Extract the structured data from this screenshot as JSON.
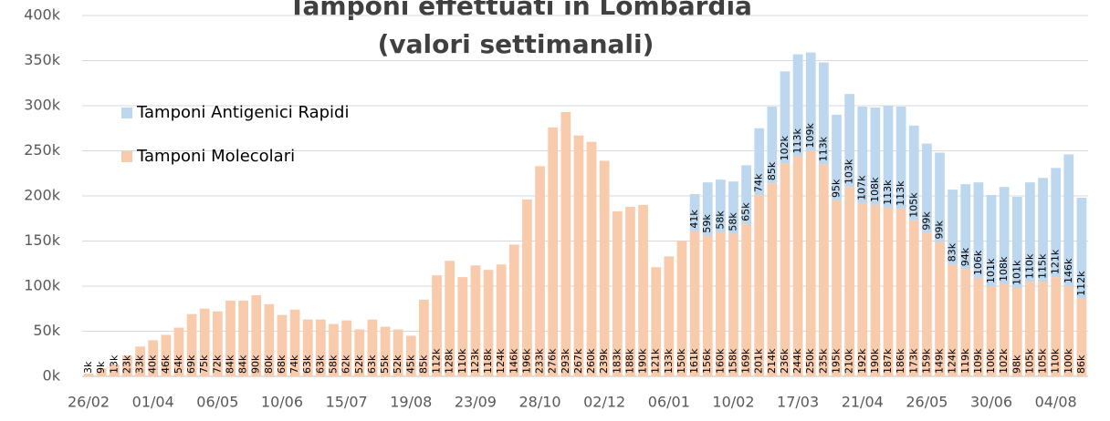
{
  "chart_data": {
    "type": "stacked_bar",
    "title": "Tamponi effettuati in Lombardia",
    "subtitle": "(valori settimanali)",
    "categories": [
      "26/02",
      null,
      null,
      null,
      null,
      "01/04",
      null,
      null,
      null,
      null,
      "06/05",
      null,
      null,
      null,
      null,
      "10/06",
      null,
      null,
      null,
      null,
      "15/07",
      null,
      null,
      null,
      null,
      "19/08",
      null,
      null,
      null,
      null,
      "23/09",
      null,
      null,
      null,
      null,
      "28/10",
      null,
      null,
      null,
      null,
      "02/12",
      null,
      null,
      null,
      null,
      "06/01",
      null,
      null,
      null,
      null,
      "10/02",
      null,
      null,
      null,
      null,
      "17/03",
      null,
      null,
      null,
      null,
      "21/04",
      null,
      null,
      null,
      null,
      "26/05",
      null,
      null,
      null,
      null,
      "30/06",
      null,
      null,
      null,
      null,
      "04/08",
      null,
      null
    ],
    "series": [
      {
        "name": "Tamponi Molecolari",
        "color": "#f8cbad",
        "values": [
          3000,
          9000,
          13000,
          23000,
          33000,
          40000,
          46000,
          54000,
          69000,
          75000,
          72000,
          84000,
          84000,
          90000,
          80000,
          68000,
          74000,
          63000,
          63000,
          58000,
          62000,
          52000,
          63000,
          55000,
          52000,
          45000,
          85000,
          112000,
          128000,
          110000,
          123000,
          118000,
          124000,
          146000,
          196000,
          233000,
          276000,
          293000,
          267000,
          260000,
          239000,
          183000,
          188000,
          190000,
          121000,
          133000,
          150000,
          161000,
          156000,
          160000,
          158000,
          169000,
          201000,
          214000,
          236000,
          244000,
          250000,
          235000,
          195000,
          210000,
          192000,
          190000,
          187000,
          186000,
          173000,
          159000,
          149000,
          124000,
          119000,
          109000,
          100000,
          102000,
          98000,
          105000,
          105000,
          110000,
          100000,
          86000
        ],
        "value_labels": [
          "3k",
          "9k",
          "13k",
          "23k",
          "33k",
          "40k",
          "46k",
          "54k",
          "69k",
          "75k",
          "72k",
          "84k",
          "84k",
          "90k",
          "80k",
          "68k",
          "74k",
          "63k",
          "63k",
          "58k",
          "62k",
          "52k",
          "63k",
          "55k",
          "52k",
          "45k",
          "85k",
          "112k",
          "128k",
          "110k",
          "123k",
          "118k",
          "124k",
          "146k",
          "196k",
          "233k",
          "276k",
          "293k",
          "267k",
          "260k",
          "239k",
          "183k",
          "188k",
          "190k",
          "121k",
          "133k",
          "150k",
          "161k",
          "156k",
          "160k",
          "158k",
          "169k",
          "201k",
          "214k",
          "236k",
          "244k",
          "250k",
          "235k",
          "195k",
          "210k",
          "192k",
          "190k",
          "187k",
          "186k",
          "173k",
          "159k",
          "149k",
          "124k",
          "119k",
          "109k",
          "100k",
          "102k",
          "98k",
          "105k",
          "105k",
          "110k",
          "100k",
          "86k"
        ]
      },
      {
        "name": "Tamponi Antigenici Rapidi",
        "color": "#bdd7ee",
        "values": [
          null,
          null,
          null,
          null,
          null,
          null,
          null,
          null,
          null,
          null,
          null,
          null,
          null,
          null,
          null,
          null,
          null,
          null,
          null,
          null,
          null,
          null,
          null,
          null,
          null,
          null,
          null,
          null,
          null,
          null,
          null,
          null,
          null,
          null,
          null,
          null,
          null,
          null,
          null,
          null,
          null,
          null,
          null,
          null,
          null,
          null,
          null,
          41000,
          59000,
          58000,
          58000,
          65000,
          74000,
          85000,
          102000,
          113000,
          109000,
          113000,
          95000,
          103000,
          107000,
          108000,
          113000,
          113000,
          105000,
          99000,
          99000,
          83000,
          94000,
          106000,
          101000,
          108000,
          101000,
          110000,
          115000,
          121000,
          146000,
          112000
        ],
        "value_labels": [
          null,
          null,
          null,
          null,
          null,
          null,
          null,
          null,
          null,
          null,
          null,
          null,
          null,
          null,
          null,
          null,
          null,
          null,
          null,
          null,
          null,
          null,
          null,
          null,
          null,
          null,
          null,
          null,
          null,
          null,
          null,
          null,
          null,
          null,
          null,
          null,
          null,
          null,
          null,
          null,
          null,
          null,
          null,
          null,
          null,
          null,
          null,
          "41k",
          "59k",
          "58k",
          "58k",
          "65k",
          "74k",
          "85k",
          "102k",
          "113k",
          "109k",
          "113k",
          "95k",
          "103k",
          "107k",
          "108k",
          "113k",
          "113k",
          "105k",
          "99k",
          "99k",
          "83k",
          "94k",
          "106k",
          "101k",
          "108k",
          "101k",
          "110k",
          "115k",
          "121k",
          "146k",
          "112k"
        ]
      }
    ],
    "ylim": [
      0,
      400000
    ],
    "yticks": [
      {
        "value": 0,
        "label": "0k"
      },
      {
        "value": 50000,
        "label": "50k"
      },
      {
        "value": 100000,
        "label": "100k"
      },
      {
        "value": 150000,
        "label": "150k"
      },
      {
        "value": 200000,
        "label": "200k"
      },
      {
        "value": 250000,
        "label": "250k"
      },
      {
        "value": 300000,
        "label": "300k"
      },
      {
        "value": 350000,
        "label": "350k"
      },
      {
        "value": 400000,
        "label": "400k"
      }
    ],
    "grid": true
  }
}
